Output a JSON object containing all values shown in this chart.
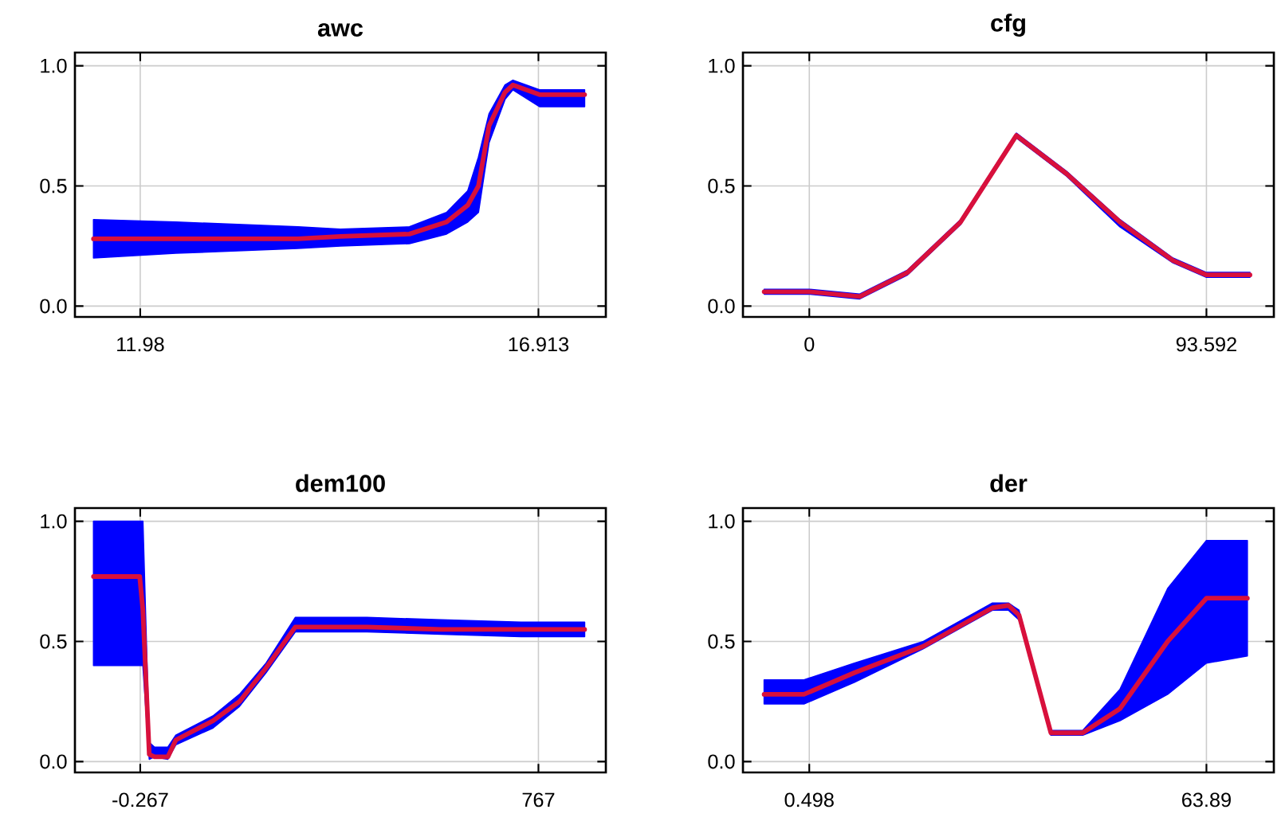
{
  "chart_data": [
    {
      "type": "line",
      "title": "awc",
      "xlim": [
        11.171,
        17.748
      ],
      "ylim": [
        -0.045,
        1.055
      ],
      "xticks": [
        11.98,
        16.913
      ],
      "yticks": [
        {
          "value": 0,
          "label": "0.0"
        },
        {
          "value": 0.5,
          "label": "0.5"
        },
        {
          "value": 1,
          "label": "1.0"
        }
      ],
      "grid": true,
      "series": [
        {
          "color": "#d8103c",
          "x": [
            11.401,
            12.421,
            13.933,
            14.46,
            15.315,
            15.775,
            16.038,
            16.17,
            16.301,
            16.499,
            16.597,
            16.926,
            17.485
          ],
          "values": [
            0.28,
            0.28,
            0.28,
            0.29,
            0.3,
            0.35,
            0.42,
            0.5,
            0.75,
            0.89,
            0.92,
            0.88,
            0.88
          ],
          "lower": [
            0.2,
            0.22,
            0.24,
            0.25,
            0.26,
            0.3,
            0.35,
            0.39,
            0.68,
            0.86,
            0.9,
            0.83,
            0.83
          ],
          "upper": [
            0.36,
            0.35,
            0.33,
            0.32,
            0.33,
            0.39,
            0.48,
            0.62,
            0.8,
            0.92,
            0.94,
            0.9,
            0.9
          ]
        }
      ]
    },
    {
      "type": "line",
      "title": "cfg",
      "xlim": [
        -15.64,
        109.48
      ],
      "ylim": [
        -0.045,
        1.055
      ],
      "xticks": [
        0,
        93.592
      ],
      "yticks": [
        {
          "value": 0,
          "label": "0.0"
        },
        {
          "value": 0.5,
          "label": "0.5"
        },
        {
          "value": 1,
          "label": "1.0"
        }
      ],
      "grid": true,
      "series": [
        {
          "color": "#d8103c",
          "x": [
            -10.64,
            0,
            11.89,
            23.15,
            35.66,
            48.79,
            60.68,
            73.2,
            85.71,
            93.592,
            103.85
          ],
          "values": [
            0.06,
            0.06,
            0.04,
            0.14,
            0.35,
            0.71,
            0.55,
            0.35,
            0.19,
            0.13,
            0.13
          ],
          "lower": [
            0.05,
            0.05,
            0.03,
            0.13,
            0.34,
            0.7,
            0.54,
            0.33,
            0.18,
            0.12,
            0.12
          ],
          "upper": [
            0.07,
            0.07,
            0.05,
            0.15,
            0.36,
            0.72,
            0.56,
            0.36,
            0.2,
            0.14,
            0.14
          ]
        }
      ]
    },
    {
      "type": "line",
      "title": "dem100",
      "xlim": [
        -126.1,
        896.9
      ],
      "ylim": [
        -0.045,
        1.055
      ],
      "xticks": [
        -0.267,
        767
      ],
      "yticks": [
        {
          "value": 0,
          "label": "0.0"
        },
        {
          "value": 0.5,
          "label": "0.5"
        },
        {
          "value": 1,
          "label": "1.0"
        }
      ],
      "grid": true,
      "series": [
        {
          "color": "#d8103c",
          "x": [
            -90.29,
            -1.29,
            4.85,
            17.13,
            27.36,
            52.93,
            68.28,
            139.9,
            191.0,
            242.2,
            298.5,
            436.6,
            579.9,
            733.4,
            856.0
          ],
          "values": [
            0.77,
            0.77,
            0.63,
            0.03,
            0.02,
            0.02,
            0.09,
            0.17,
            0.25,
            0.39,
            0.56,
            0.56,
            0.55,
            0.55,
            0.55
          ],
          "lower": [
            0.4,
            0.4,
            0.4,
            0.01,
            0.02,
            0.01,
            0.07,
            0.14,
            0.23,
            0.37,
            0.54,
            0.54,
            0.53,
            0.52,
            0.52
          ],
          "upper": [
            1.0,
            1.0,
            1.0,
            0.08,
            0.06,
            0.06,
            0.11,
            0.19,
            0.28,
            0.41,
            0.6,
            0.6,
            0.59,
            0.58,
            0.58
          ]
        }
      ]
    },
    {
      "type": "line",
      "title": "der",
      "xlim": [
        -10.09,
        74.65
      ],
      "ylim": [
        -0.045,
        1.055
      ],
      "xticks": [
        0.498,
        63.89
      ],
      "yticks": [
        {
          "value": 0,
          "label": "0.0"
        },
        {
          "value": 0.5,
          "label": "0.5"
        },
        {
          "value": 1,
          "label": "1.0"
        }
      ],
      "grid": true,
      "series": [
        {
          "color": "#d8103c",
          "x": [
            -6.706,
            -0.35,
            7.702,
            18.72,
            29.74,
            32.28,
            33.97,
            39.06,
            44.14,
            50.08,
            57.7,
            63.89,
            70.42
          ],
          "values": [
            0.28,
            0.28,
            0.37,
            0.48,
            0.64,
            0.65,
            0.61,
            0.12,
            0.12,
            0.22,
            0.5,
            0.68,
            0.68
          ],
          "lower": [
            0.24,
            0.24,
            0.33,
            0.47,
            0.63,
            0.63,
            0.59,
            0.11,
            0.11,
            0.17,
            0.28,
            0.41,
            0.44
          ],
          "upper": [
            0.34,
            0.34,
            0.41,
            0.5,
            0.66,
            0.66,
            0.63,
            0.13,
            0.13,
            0.3,
            0.72,
            0.92,
            0.92
          ]
        }
      ]
    }
  ]
}
